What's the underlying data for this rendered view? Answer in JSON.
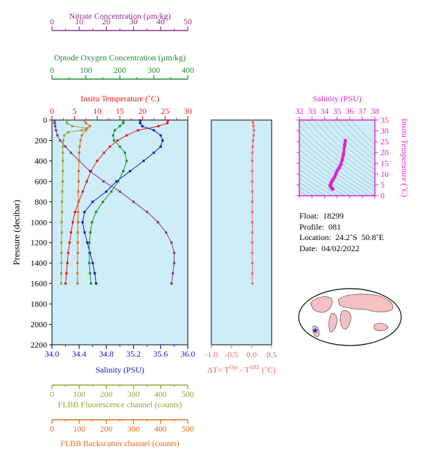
{
  "chart_data": {
    "type": "line",
    "main_profile": {
      "y_axis": {
        "label": "Pressure (decibar)",
        "range": [
          0,
          2200
        ],
        "inverted": true,
        "ticks": [
          0,
          200,
          400,
          600,
          800,
          1000,
          1200,
          1400,
          1600,
          1800,
          2000,
          2200
        ]
      },
      "axes": [
        {
          "key": "nitrate",
          "label": "Nitrate Concentration (µm/kg)",
          "color": "#8b2b8b",
          "range": [
            0,
            50
          ],
          "ticks": [
            0,
            10,
            20,
            30,
            40,
            50
          ],
          "position": "top"
        },
        {
          "key": "oxygen",
          "label": "Optode Oxygen Concentration (µm/kg)",
          "color": "#1a8a2a",
          "range": [
            0,
            400
          ],
          "ticks": [
            0,
            100,
            200,
            300,
            400
          ],
          "position": "top"
        },
        {
          "key": "temperature",
          "label": "Insitu Temperature (˚C)",
          "color": "#ee1111",
          "range": [
            0,
            30
          ],
          "ticks": [
            0,
            5,
            10,
            15,
            20,
            25,
            30
          ],
          "position": "top"
        },
        {
          "key": "salinity",
          "label": "Salinity (PSU)",
          "color": "#1111cc",
          "range": [
            34.0,
            36.0
          ],
          "ticks": [
            "34.0",
            "34.4",
            "34.8",
            "35.2",
            "35.6",
            "36.0"
          ],
          "position": "bottom"
        },
        {
          "key": "fluorescence",
          "label": "FLBB Fluorescence channel (counts)",
          "color": "#9aa030",
          "range": [
            0,
            500
          ],
          "ticks": [
            0,
            100,
            200,
            300,
            400,
            500
          ],
          "position": "bottom"
        },
        {
          "key": "backscatter",
          "label": "FLBB Backscatter channel (counts)",
          "color": "#e06a1a",
          "range": [
            0,
            500
          ],
          "ticks": [
            0,
            100,
            200,
            300,
            400,
            500
          ],
          "position": "bottom"
        }
      ],
      "series": [
        {
          "key": "temperature",
          "points": [
            [
              5,
              25.6
            ],
            [
              30,
              25.5
            ],
            [
              60,
              23.5
            ],
            [
              100,
              19.0
            ],
            [
              150,
              16.5
            ],
            [
              200,
              14.5
            ],
            [
              260,
              12.8
            ],
            [
              320,
              11.5
            ],
            [
              400,
              10.0
            ],
            [
              500,
              8.6
            ],
            [
              600,
              7.7
            ],
            [
              700,
              6.8
            ],
            [
              800,
              5.9
            ],
            [
              900,
              5.1
            ],
            [
              1000,
              4.6
            ],
            [
              1100,
              4.2
            ],
            [
              1200,
              3.9
            ],
            [
              1300,
              3.6
            ],
            [
              1400,
              3.4
            ],
            [
              1500,
              3.2
            ],
            [
              1600,
              3.0
            ]
          ]
        },
        {
          "key": "salinity",
          "points": [
            [
              5,
              35.3
            ],
            [
              30,
              35.3
            ],
            [
              60,
              35.33
            ],
            [
              100,
              35.5
            ],
            [
              150,
              35.6
            ],
            [
              200,
              35.63
            ],
            [
              260,
              35.6
            ],
            [
              320,
              35.5
            ],
            [
              400,
              35.35
            ],
            [
              500,
              35.15
            ],
            [
              600,
              34.95
            ],
            [
              700,
              34.8
            ],
            [
              800,
              34.6
            ],
            [
              900,
              34.48
            ],
            [
              1000,
              34.45
            ],
            [
              1100,
              34.48
            ],
            [
              1200,
              34.52
            ],
            [
              1300,
              34.56
            ],
            [
              1400,
              34.6
            ],
            [
              1500,
              34.63
            ],
            [
              1600,
              34.65
            ]
          ]
        },
        {
          "key": "oxygen",
          "points": [
            [
              5,
              210
            ],
            [
              30,
              210
            ],
            [
              60,
              200
            ],
            [
              100,
              185
            ],
            [
              150,
              180
            ],
            [
              200,
              183
            ],
            [
              260,
              200
            ],
            [
              320,
              215
            ],
            [
              400,
              220
            ],
            [
              500,
              210
            ],
            [
              600,
              195
            ],
            [
              700,
              175
            ],
            [
              800,
              150
            ],
            [
              900,
              130
            ],
            [
              1000,
              118
            ],
            [
              1100,
              113
            ],
            [
              1200,
              110
            ],
            [
              1300,
              110
            ],
            [
              1400,
              110
            ],
            [
              1500,
              112
            ],
            [
              1600,
              115
            ]
          ]
        },
        {
          "key": "nitrate",
          "points": [
            [
              5,
              1
            ],
            [
              30,
              1
            ],
            [
              60,
              1.2
            ],
            [
              100,
              1.5
            ],
            [
              150,
              2
            ],
            [
              200,
              3
            ],
            [
              260,
              5
            ],
            [
              320,
              7
            ],
            [
              400,
              10
            ],
            [
              500,
              14
            ],
            [
              600,
              19
            ],
            [
              700,
              25
            ],
            [
              800,
              30
            ],
            [
              900,
              35
            ],
            [
              1000,
              39
            ],
            [
              1100,
              42
            ],
            [
              1200,
              44
            ],
            [
              1300,
              45
            ],
            [
              1400,
              45
            ],
            [
              1500,
              44.5
            ],
            [
              1600,
              44
            ]
          ]
        },
        {
          "key": "fluorescence",
          "points": [
            [
              5,
              55
            ],
            [
              30,
              55
            ],
            [
              60,
              75
            ],
            [
              80,
              130
            ],
            [
              100,
              110
            ],
            [
              120,
              60
            ],
            [
              150,
              45
            ],
            [
              200,
              42
            ],
            [
              260,
              40
            ],
            [
              320,
              40
            ],
            [
              400,
              40
            ],
            [
              500,
              40
            ],
            [
              600,
              39
            ],
            [
              700,
              38
            ],
            [
              800,
              37
            ],
            [
              900,
              37
            ],
            [
              1000,
              36
            ],
            [
              1100,
              36
            ],
            [
              1200,
              35
            ],
            [
              1300,
              35
            ],
            [
              1400,
              35
            ],
            [
              1500,
              34
            ],
            [
              1600,
              34
            ]
          ]
        },
        {
          "key": "backscatter",
          "points": [
            [
              5,
              120
            ],
            [
              30,
              125
            ],
            [
              60,
              140
            ],
            [
              100,
              125
            ],
            [
              150,
              110
            ],
            [
              200,
              105
            ],
            [
              260,
              102
            ],
            [
              320,
              100
            ],
            [
              400,
              100
            ],
            [
              500,
              98
            ],
            [
              600,
              98
            ],
            [
              700,
              97
            ],
            [
              800,
              97
            ],
            [
              900,
              96
            ],
            [
              1000,
              96
            ],
            [
              1100,
              95
            ],
            [
              1200,
              95
            ],
            [
              1300,
              95
            ],
            [
              1400,
              94
            ],
            [
              1500,
              94
            ],
            [
              1600,
              94
            ]
          ]
        }
      ]
    },
    "delta_panel": {
      "x_label_prefix": "ΔT= T",
      "x_label_sup1": "Opt",
      "x_label_mid": " - T",
      "x_label_sup2": "SBE",
      "x_label_suffix": " (˚C)",
      "color": "#f06060",
      "range": [
        -1.0,
        0.5
      ],
      "ticks": [
        "-1.0",
        "-0.5",
        "0.0",
        "0.5"
      ],
      "points": [
        [
          5,
          0.03
        ],
        [
          30,
          0.04
        ],
        [
          60,
          0.05
        ],
        [
          100,
          0.06
        ],
        [
          150,
          0.05
        ],
        [
          200,
          0.04
        ],
        [
          260,
          0.03
        ],
        [
          320,
          0.02
        ],
        [
          400,
          0.02
        ],
        [
          500,
          0.02
        ],
        [
          600,
          0.02
        ],
        [
          700,
          0.02
        ],
        [
          800,
          0.02
        ],
        [
          900,
          0.02
        ],
        [
          1000,
          0.02
        ],
        [
          1100,
          0.02
        ],
        [
          1200,
          0.02
        ],
        [
          1300,
          0.02
        ],
        [
          1400,
          0.02
        ],
        [
          1500,
          0.02
        ],
        [
          1600,
          0.02
        ]
      ]
    },
    "ts_panel": {
      "x_label": "Salinity (PSU)",
      "y_label": "Insitu Temperature (˚C)",
      "color": "#dd22cc",
      "x_range": [
        32,
        38
      ],
      "y_range": [
        0,
        35
      ],
      "x_ticks": [
        32,
        33,
        34,
        35,
        36,
        37,
        38
      ],
      "y_ticks": [
        0,
        5,
        10,
        15,
        20,
        25,
        30,
        35
      ],
      "points": [
        [
          35.65,
          25.5
        ],
        [
          35.6,
          23.5
        ],
        [
          35.5,
          19.0
        ],
        [
          35.4,
          16.5
        ],
        [
          35.3,
          14.5
        ],
        [
          35.15,
          12.8
        ],
        [
          35.0,
          11.5
        ],
        [
          34.9,
          10.0
        ],
        [
          34.8,
          8.6
        ],
        [
          34.7,
          7.7
        ],
        [
          34.6,
          6.8
        ],
        [
          34.52,
          5.9
        ],
        [
          34.47,
          5.1
        ],
        [
          34.45,
          4.6
        ],
        [
          34.48,
          4.2
        ],
        [
          34.52,
          3.9
        ],
        [
          34.56,
          3.6
        ],
        [
          34.6,
          3.4
        ],
        [
          34.63,
          3.2
        ],
        [
          34.65,
          3.0
        ]
      ]
    }
  },
  "info": {
    "float_label": "Float:",
    "float_value": "18299",
    "profile_label": "Profile:",
    "profile_value": "081",
    "location_label": "Location:",
    "location_value": "24.2˚S  50.8˚E",
    "date_label": "Date:",
    "date_value": "04/02/2022"
  },
  "colors": {
    "plot_bg": "#cdeef8",
    "map_land": "#f5c0c0",
    "map_ocean": "#ffffff"
  }
}
